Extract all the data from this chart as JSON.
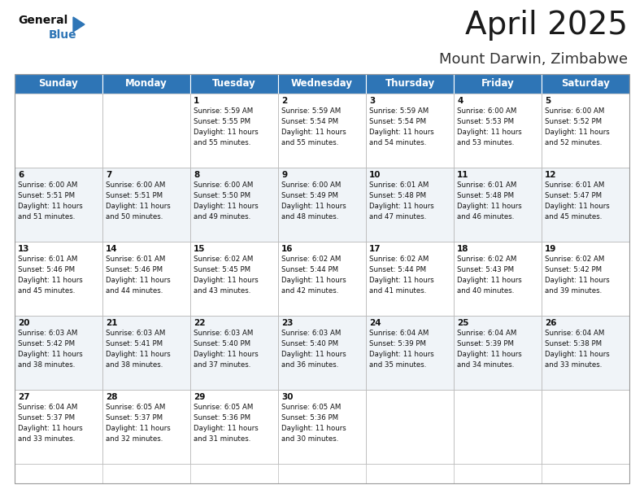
{
  "title": "April 2025",
  "subtitle": "Mount Darwin, Zimbabwe",
  "header_bg": "#2E75B6",
  "header_text_color": "#FFFFFF",
  "row_bg_even": "#FFFFFF",
  "row_bg_odd": "#F0F4F8",
  "grid_color": "#BBBBBB",
  "day_headers": [
    "Sunday",
    "Monday",
    "Tuesday",
    "Wednesday",
    "Thursday",
    "Friday",
    "Saturday"
  ],
  "days": [
    {
      "date": 1,
      "col": 2,
      "row": 0,
      "sunrise": "5:59 AM",
      "sunset": "5:55 PM",
      "daylight": "11 hours and 55 minutes."
    },
    {
      "date": 2,
      "col": 3,
      "row": 0,
      "sunrise": "5:59 AM",
      "sunset": "5:54 PM",
      "daylight": "11 hours and 55 minutes."
    },
    {
      "date": 3,
      "col": 4,
      "row": 0,
      "sunrise": "5:59 AM",
      "sunset": "5:54 PM",
      "daylight": "11 hours and 54 minutes."
    },
    {
      "date": 4,
      "col": 5,
      "row": 0,
      "sunrise": "6:00 AM",
      "sunset": "5:53 PM",
      "daylight": "11 hours and 53 minutes."
    },
    {
      "date": 5,
      "col": 6,
      "row": 0,
      "sunrise": "6:00 AM",
      "sunset": "5:52 PM",
      "daylight": "11 hours and 52 minutes."
    },
    {
      "date": 6,
      "col": 0,
      "row": 1,
      "sunrise": "6:00 AM",
      "sunset": "5:51 PM",
      "daylight": "11 hours and 51 minutes."
    },
    {
      "date": 7,
      "col": 1,
      "row": 1,
      "sunrise": "6:00 AM",
      "sunset": "5:51 PM",
      "daylight": "11 hours and 50 minutes."
    },
    {
      "date": 8,
      "col": 2,
      "row": 1,
      "sunrise": "6:00 AM",
      "sunset": "5:50 PM",
      "daylight": "11 hours and 49 minutes."
    },
    {
      "date": 9,
      "col": 3,
      "row": 1,
      "sunrise": "6:00 AM",
      "sunset": "5:49 PM",
      "daylight": "11 hours and 48 minutes."
    },
    {
      "date": 10,
      "col": 4,
      "row": 1,
      "sunrise": "6:01 AM",
      "sunset": "5:48 PM",
      "daylight": "11 hours and 47 minutes."
    },
    {
      "date": 11,
      "col": 5,
      "row": 1,
      "sunrise": "6:01 AM",
      "sunset": "5:48 PM",
      "daylight": "11 hours and 46 minutes."
    },
    {
      "date": 12,
      "col": 6,
      "row": 1,
      "sunrise": "6:01 AM",
      "sunset": "5:47 PM",
      "daylight": "11 hours and 45 minutes."
    },
    {
      "date": 13,
      "col": 0,
      "row": 2,
      "sunrise": "6:01 AM",
      "sunset": "5:46 PM",
      "daylight": "11 hours and 45 minutes."
    },
    {
      "date": 14,
      "col": 1,
      "row": 2,
      "sunrise": "6:01 AM",
      "sunset": "5:46 PM",
      "daylight": "11 hours and 44 minutes."
    },
    {
      "date": 15,
      "col": 2,
      "row": 2,
      "sunrise": "6:02 AM",
      "sunset": "5:45 PM",
      "daylight": "11 hours and 43 minutes."
    },
    {
      "date": 16,
      "col": 3,
      "row": 2,
      "sunrise": "6:02 AM",
      "sunset": "5:44 PM",
      "daylight": "11 hours and 42 minutes."
    },
    {
      "date": 17,
      "col": 4,
      "row": 2,
      "sunrise": "6:02 AM",
      "sunset": "5:44 PM",
      "daylight": "11 hours and 41 minutes."
    },
    {
      "date": 18,
      "col": 5,
      "row": 2,
      "sunrise": "6:02 AM",
      "sunset": "5:43 PM",
      "daylight": "11 hours and 40 minutes."
    },
    {
      "date": 19,
      "col": 6,
      "row": 2,
      "sunrise": "6:02 AM",
      "sunset": "5:42 PM",
      "daylight": "11 hours and 39 minutes."
    },
    {
      "date": 20,
      "col": 0,
      "row": 3,
      "sunrise": "6:03 AM",
      "sunset": "5:42 PM",
      "daylight": "11 hours and 38 minutes."
    },
    {
      "date": 21,
      "col": 1,
      "row": 3,
      "sunrise": "6:03 AM",
      "sunset": "5:41 PM",
      "daylight": "11 hours and 38 minutes."
    },
    {
      "date": 22,
      "col": 2,
      "row": 3,
      "sunrise": "6:03 AM",
      "sunset": "5:40 PM",
      "daylight": "11 hours and 37 minutes."
    },
    {
      "date": 23,
      "col": 3,
      "row": 3,
      "sunrise": "6:03 AM",
      "sunset": "5:40 PM",
      "daylight": "11 hours and 36 minutes."
    },
    {
      "date": 24,
      "col": 4,
      "row": 3,
      "sunrise": "6:04 AM",
      "sunset": "5:39 PM",
      "daylight": "11 hours and 35 minutes."
    },
    {
      "date": 25,
      "col": 5,
      "row": 3,
      "sunrise": "6:04 AM",
      "sunset": "5:39 PM",
      "daylight": "11 hours and 34 minutes."
    },
    {
      "date": 26,
      "col": 6,
      "row": 3,
      "sunrise": "6:04 AM",
      "sunset": "5:38 PM",
      "daylight": "11 hours and 33 minutes."
    },
    {
      "date": 27,
      "col": 0,
      "row": 4,
      "sunrise": "6:04 AM",
      "sunset": "5:37 PM",
      "daylight": "11 hours and 33 minutes."
    },
    {
      "date": 28,
      "col": 1,
      "row": 4,
      "sunrise": "6:05 AM",
      "sunset": "5:37 PM",
      "daylight": "11 hours and 32 minutes."
    },
    {
      "date": 29,
      "col": 2,
      "row": 4,
      "sunrise": "6:05 AM",
      "sunset": "5:36 PM",
      "daylight": "11 hours and 31 minutes."
    },
    {
      "date": 30,
      "col": 3,
      "row": 4,
      "sunrise": "6:05 AM",
      "sunset": "5:36 PM",
      "daylight": "11 hours and 30 minutes."
    }
  ],
  "title_fontsize": 28,
  "subtitle_fontsize": 13,
  "header_fontsize": 8.5,
  "date_fontsize": 7.5,
  "cell_text_fontsize": 6.2,
  "logo_fontsize_general": 10,
  "logo_fontsize_blue": 10
}
